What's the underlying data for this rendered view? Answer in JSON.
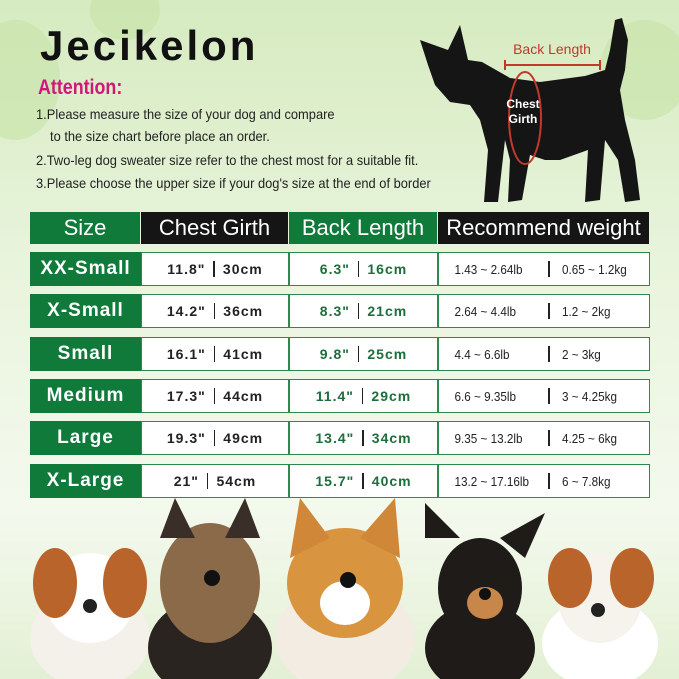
{
  "brand": "Jecikelon",
  "attention": "Attention:",
  "notes": [
    "1.Please measure the size of your dog and compare",
    "to the size chart before place an order.",
    "2.Two-leg dog sweater size refer to the chest most for a suitable fit.",
    "3.Please choose the upper size if your dog's size at the end of border"
  ],
  "diagram": {
    "back_length": "Back Length",
    "chest_line1": "Chest",
    "chest_line2": "Girth"
  },
  "table": {
    "headers": [
      "Size",
      "Chest Girth",
      "Back Length",
      "Recommend weight"
    ],
    "rows": [
      {
        "size": "XX-Small",
        "chest_in": "11.8\"",
        "chest_cm": "30cm",
        "back_in": "6.3\"",
        "back_cm": "16cm",
        "w_lb": "1.43 ~ 2.64lb",
        "w_kg": "0.65 ~ 1.2kg"
      },
      {
        "size": "X-Small",
        "chest_in": "14.2\"",
        "chest_cm": "36cm",
        "back_in": "8.3\"",
        "back_cm": "21cm",
        "w_lb": "2.64 ~ 4.4lb",
        "w_kg": "1.2 ~ 2kg"
      },
      {
        "size": "Small",
        "chest_in": "16.1\"",
        "chest_cm": "41cm",
        "back_in": "9.8\"",
        "back_cm": "25cm",
        "w_lb": "4.4 ~ 6.6lb",
        "w_kg": "2 ~ 3kg"
      },
      {
        "size": "Medium",
        "chest_in": "17.3\"",
        "chest_cm": "44cm",
        "back_in": "11.4\"",
        "back_cm": "29cm",
        "w_lb": "6.6 ~ 9.35lb",
        "w_kg": "3 ~ 4.25kg"
      },
      {
        "size": "Large",
        "chest_in": "19.3\"",
        "chest_cm": "49cm",
        "back_in": "13.4\"",
        "back_cm": "34cm",
        "w_lb": "9.35 ~ 13.2lb",
        "w_kg": "4.25 ~ 6kg"
      },
      {
        "size": "X-Large",
        "chest_in": "21\"",
        "chest_cm": "54cm",
        "back_in": "15.7\"",
        "back_cm": "40cm",
        "w_lb": "13.2 ~ 17.16lb",
        "w_kg": "6 ~ 7.8kg"
      }
    ]
  },
  "colors": {
    "green": "#107a3a",
    "black": "#151515",
    "pink": "#d0187a",
    "measure_red": "#c0392b"
  }
}
